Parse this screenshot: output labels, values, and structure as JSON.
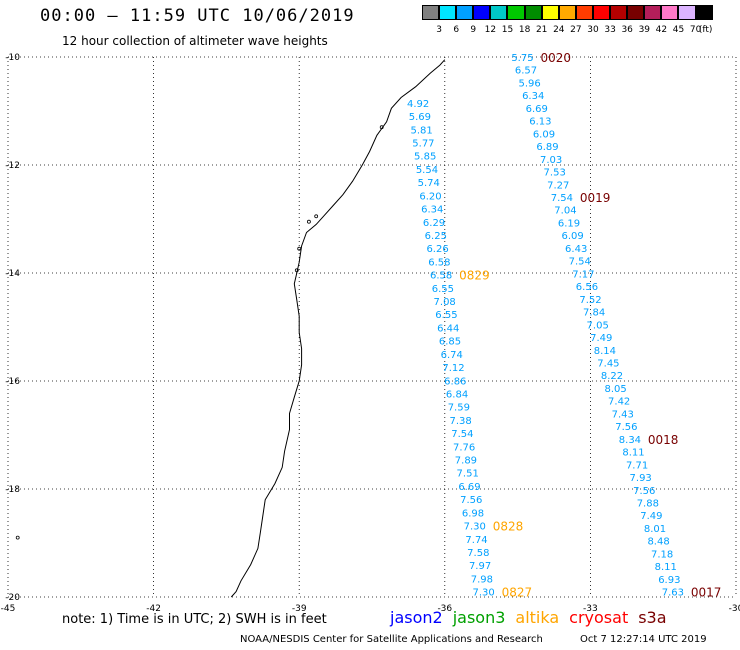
{
  "header": {
    "title": "00:00 – 11:59 UTC 10/06/2019",
    "subtitle": "12 hour collection of altimeter wave heights"
  },
  "colorbar": {
    "colors": [
      "#808080",
      "#00e6ff",
      "#00a0ff",
      "#0000ff",
      "#00c8c8",
      "#00c800",
      "#008c00",
      "#ffff00",
      "#ffaa00",
      "#ff3c00",
      "#ff0000",
      "#b40000",
      "#780000",
      "#b41e5a",
      "#ff78c8",
      "#dcb4ff",
      "#000000"
    ],
    "ticks": [
      "3",
      "6",
      "9",
      "12",
      "15",
      "18",
      "21",
      "24",
      "27",
      "30",
      "33",
      "36",
      "39",
      "42",
      "45",
      "70",
      "(ft)"
    ]
  },
  "axes": {
    "lat_labels": [
      "-10",
      "-12",
      "-14",
      "-16",
      "-18",
      "-20"
    ],
    "lat_values": [
      -10,
      -12,
      -14,
      -16,
      -18,
      -20
    ],
    "lon_labels": [
      "-45",
      "-42",
      "-39",
      "-36",
      "-33",
      "-30"
    ],
    "lon_values": [
      -45,
      -42,
      -39,
      -36,
      -33,
      -30
    ]
  },
  "colors": {
    "swh_text": "#00a0ff",
    "time_jason3": "#ffa500",
    "time_s3a": "#780000",
    "grid": "#000000"
  },
  "tracks": [
    {
      "name": "track-jason3-west",
      "times": [
        {
          "label": "0829",
          "index": 13
        },
        {
          "label": "0828",
          "index": 32
        },
        {
          "label": "0827",
          "index": 48
        }
      ],
      "values": [
        "4.92",
        "5.69",
        "5.81",
        "5.77",
        "5.85",
        "5.54",
        "5.74",
        "6.20",
        "6.34",
        "6.29",
        "6.25",
        "6.26",
        "6.58",
        "6.58",
        "6.55",
        "7.08",
        "6.55",
        "6.44",
        "6.85",
        "6.74",
        "7.12",
        "6.86",
        "6.84",
        "7.59",
        "7.38",
        "7.54",
        "7.76",
        "7.89",
        "7.51",
        "6.69",
        "7.56",
        "6.98",
        "7.30",
        "7.74",
        "7.58",
        "7.97",
        "7.98",
        "7.30"
      ]
    },
    {
      "name": "track-s3a-east",
      "times": [
        {
          "label": "0020",
          "index": 0
        },
        {
          "label": "0019",
          "index": 11
        },
        {
          "label": "0018",
          "index": 30
        },
        {
          "label": "0017",
          "index": 47
        }
      ],
      "values": [
        "5.75",
        "6.57",
        "5.96",
        "6.34",
        "6.69",
        "6.13",
        "6.09",
        "6.89",
        "7.03",
        "7.53",
        "7.27",
        "7.54",
        "7.04",
        "6.19",
        "6.09",
        "6.43",
        "7.54",
        "7.17",
        "6.56",
        "7.52",
        "7.84",
        "7.05",
        "7.49",
        "8.14",
        "7.45",
        "8.22",
        "8.05",
        "7.42",
        "7.43",
        "7.56",
        "8.34",
        "8.11",
        "7.71",
        "7.93",
        "7.56",
        "7.88",
        "7.49",
        "8.01",
        "8.48",
        "7.18",
        "8.11",
        "6.93",
        "7.63"
      ]
    }
  ],
  "legend": {
    "note": "note: 1) Time is in UTC; 2) SWH is in feet",
    "satellites": [
      {
        "name": "jason2",
        "color": "#0000ff"
      },
      {
        "name": "jason3",
        "color": "#00a000"
      },
      {
        "name": "altika",
        "color": "#ffa500"
      },
      {
        "name": "cryosat",
        "color": "#ff0000"
      },
      {
        "name": "s3a",
        "color": "#780000"
      }
    ]
  },
  "footer": {
    "credit": "NOAA/NESDIS Center for Satellite Applications and Research",
    "timestamp": "Oct  7 12:27:14 UTC 2019"
  }
}
